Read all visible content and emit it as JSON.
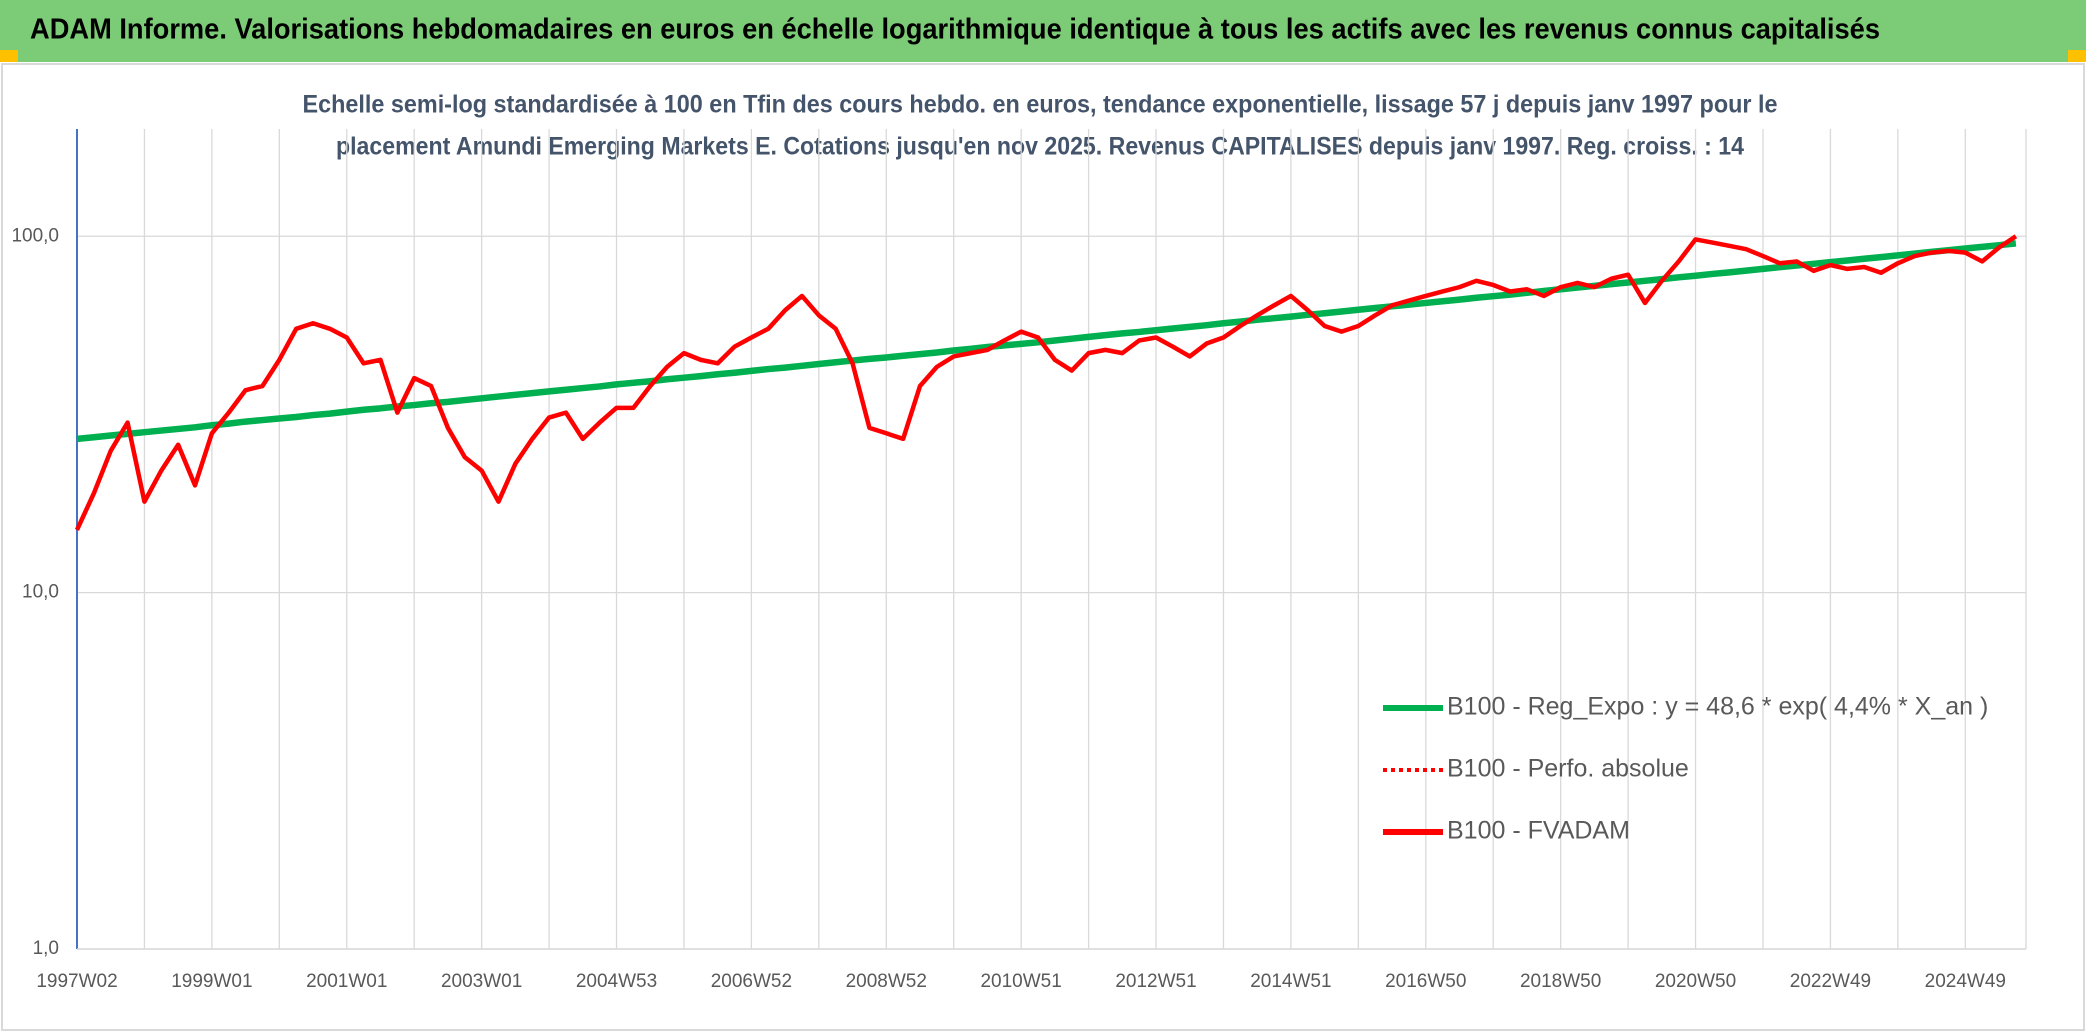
{
  "chart_data": {
    "type": "line",
    "title": "ADAM Informe. Valorisations hebdomadaires en euros en échelle logarithmique identique à tous les actifs avec les revenus connus capitalisés",
    "subtitle": [
      "Echelle semi-log standardisée à 100 en Tfin des cours hebdo. en euros, tendance exponentielle, lissage 57 j depuis janv 1997 pour le",
      "placement Amundi Emerging Markets E. Cotations jusqu'en nov 2025. Revenus CAPITALISES depuis janv 1997. Reg. croiss. : 14"
    ],
    "log_scale": true,
    "grid": true,
    "legend": "right",
    "ylim": [
      1,
      200
    ],
    "yticks": [
      {
        "value": 1,
        "label": "1,0"
      },
      {
        "value": 10,
        "label": "10,0"
      },
      {
        "value": 100,
        "label": "100,0"
      }
    ],
    "categories": [
      "1997W02",
      null,
      null,
      null,
      null,
      null,
      null,
      null,
      "1999W01",
      null,
      null,
      null,
      null,
      null,
      null,
      null,
      "2001W01",
      null,
      null,
      null,
      null,
      null,
      null,
      null,
      "2003W01",
      null,
      null,
      null,
      null,
      null,
      null,
      null,
      "2004W53",
      null,
      null,
      null,
      null,
      null,
      null,
      null,
      "2006W52",
      null,
      null,
      null,
      null,
      null,
      null,
      null,
      "2008W52",
      null,
      null,
      null,
      null,
      null,
      null,
      null,
      "2010W51",
      null,
      null,
      null,
      null,
      null,
      null,
      null,
      "2012W51",
      null,
      null,
      null,
      null,
      null,
      null,
      null,
      "2014W51",
      null,
      null,
      null,
      null,
      null,
      null,
      null,
      "2016W50",
      null,
      null,
      null,
      null,
      null,
      null,
      null,
      "2018W50",
      null,
      null,
      null,
      null,
      null,
      null,
      null,
      "2020W50",
      null,
      null,
      null,
      null,
      null,
      null,
      null,
      "2022W49",
      null,
      null,
      null,
      null,
      null,
      null,
      null,
      "2024W49",
      null,
      null,
      null
    ],
    "series": [
      {
        "name": "B100 - Reg_Expo : y = 48,6 * exp( 4,4% *  X_an )",
        "color": "#00b050",
        "style": "solid",
        "values": [
          27.0,
          27.3,
          27.6,
          27.9,
          28.2,
          28.5,
          28.8,
          29.1,
          29.5,
          29.8,
          30.2,
          30.5,
          30.8,
          31.1,
          31.5,
          31.8,
          32.2,
          32.6,
          32.9,
          33.3,
          33.6,
          34.0,
          34.3,
          34.7,
          35.1,
          35.5,
          35.9,
          36.3,
          36.7,
          37.1,
          37.5,
          37.9,
          38.4,
          38.8,
          39.2,
          39.7,
          40.1,
          40.5,
          41.0,
          41.4,
          41.9,
          42.4,
          42.8,
          43.3,
          43.8,
          44.3,
          44.8,
          45.3,
          45.7,
          46.2,
          46.7,
          47.2,
          47.8,
          48.3,
          48.9,
          49.4,
          49.9,
          50.4,
          51.0,
          51.6,
          52.2,
          52.8,
          53.4,
          53.9,
          54.5,
          55.1,
          55.7,
          56.3,
          57.0,
          57.6,
          58.3,
          58.9,
          59.5,
          60.2,
          60.8,
          61.5,
          62.2,
          62.9,
          63.6,
          64.3,
          65.0,
          65.7,
          66.4,
          67.2,
          67.9,
          68.6,
          69.4,
          70.2,
          71.0,
          71.8,
          72.6,
          73.4,
          74.2,
          75.0,
          75.8,
          76.7,
          77.5,
          78.4,
          79.2,
          80.1,
          81.0,
          81.9,
          82.8,
          83.7,
          84.6,
          85.5,
          86.5,
          87.4,
          88.4,
          89.4,
          90.4,
          91.4,
          92.4,
          93.4,
          94.4,
          95.5
        ]
      },
      {
        "name": "B100 - Perfo. absolue",
        "color": "#ff0000",
        "style": "dotted"
      },
      {
        "name": "B100 - FVADAM",
        "color": "#ff0000",
        "style": "solid",
        "values": [
          15,
          19,
          25,
          30,
          18,
          22,
          26,
          20,
          28,
          32,
          37,
          38,
          45,
          55,
          57,
          55,
          52,
          44,
          45,
          32,
          40,
          38,
          29,
          24,
          22,
          18,
          23,
          27,
          31,
          32,
          27,
          30,
          33,
          33,
          38,
          43,
          47,
          45,
          44,
          49,
          52,
          55,
          62,
          68,
          60,
          55,
          44,
          29,
          28,
          27,
          38,
          43,
          46,
          47,
          48,
          51,
          54,
          52,
          45,
          42,
          47,
          48,
          47,
          51,
          52,
          49,
          46,
          50,
          52,
          56,
          60,
          64,
          68,
          62,
          56,
          54,
          56,
          60,
          64,
          66,
          68,
          70,
          72,
          75,
          73,
          70,
          71,
          68,
          72,
          74,
          72,
          76,
          78,
          65,
          75,
          85,
          98,
          96,
          94,
          92,
          88,
          84,
          85,
          80,
          83,
          81,
          82,
          79,
          84,
          88,
          90,
          91,
          90,
          85,
          93,
          100
        ]
      }
    ]
  }
}
